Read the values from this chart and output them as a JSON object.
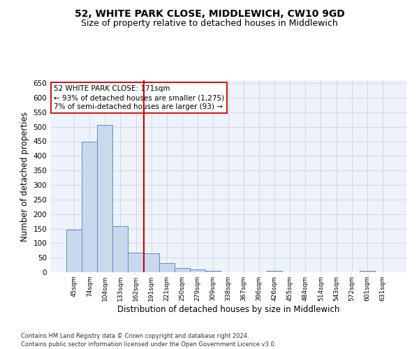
{
  "title": "52, WHITE PARK CLOSE, MIDDLEWICH, CW10 9GD",
  "subtitle": "Size of property relative to detached houses in Middlewich",
  "xlabel": "Distribution of detached houses by size in Middlewich",
  "ylabel": "Number of detached properties",
  "categories": [
    "45sqm",
    "74sqm",
    "104sqm",
    "133sqm",
    "162sqm",
    "191sqm",
    "221sqm",
    "250sqm",
    "279sqm",
    "309sqm",
    "338sqm",
    "367sqm",
    "396sqm",
    "426sqm",
    "455sqm",
    "484sqm",
    "514sqm",
    "543sqm",
    "572sqm",
    "601sqm",
    "631sqm"
  ],
  "values": [
    147,
    450,
    507,
    158,
    67,
    65,
    31,
    14,
    10,
    6,
    0,
    0,
    0,
    5,
    0,
    0,
    0,
    0,
    0,
    5,
    0
  ],
  "bar_color": "#c9d9ed",
  "bar_edge_color": "#5b8ec4",
  "vline_x": 4.5,
  "vline_color": "#cc0000",
  "annotation_line1": "52 WHITE PARK CLOSE: 171sqm",
  "annotation_line2": "← 93% of detached houses are smaller (1,275)",
  "annotation_line3": "7% of semi-detached houses are larger (93) →",
  "annotation_box_color": "#cc0000",
  "footer_text": "Contains HM Land Registry data © Crown copyright and database right 2024.\nContains public sector information licensed under the Open Government Licence v3.0.",
  "ylim": [
    0,
    660
  ],
  "yticks": [
    0,
    50,
    100,
    150,
    200,
    250,
    300,
    350,
    400,
    450,
    500,
    550,
    600,
    650
  ],
  "grid_color": "#d0d8e8",
  "background_color": "#eef2f9",
  "title_fontsize": 10,
  "subtitle_fontsize": 9,
  "xlabel_fontsize": 8.5,
  "ylabel_fontsize": 8.5
}
